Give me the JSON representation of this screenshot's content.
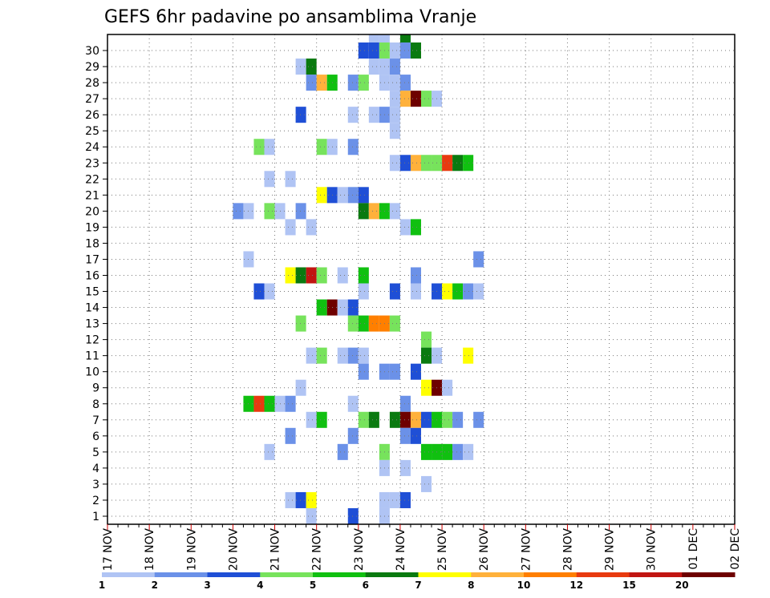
{
  "chart_data": {
    "type": "heatmap",
    "title": "GEFS 6hr padavine po ansamblima Vranje",
    "x_tick_labels": [
      "17 NOV",
      "18 NOV",
      "19 NOV",
      "20 NOV",
      "21 NOV",
      "22 NOV",
      "23 NOV",
      "24 NOV",
      "25 NOV",
      "26 NOV",
      "27 NOV",
      "28 NOV",
      "29 NOV",
      "30 NOV",
      "01 DEC",
      "02 DEC"
    ],
    "y_tick_labels": [
      "1",
      "2",
      "3",
      "4",
      "5",
      "6",
      "7",
      "8",
      "9",
      "10",
      "11",
      "12",
      "13",
      "14",
      "15",
      "16",
      "17",
      "18",
      "19",
      "20",
      "21",
      "22",
      "23",
      "24",
      "25",
      "26",
      "27",
      "28",
      "29",
      "30"
    ],
    "time_steps_per_day": 4,
    "grid": true,
    "legend": {
      "placement": "bottom",
      "thresholds": [
        "1",
        "2",
        "3",
        "4",
        "5",
        "6",
        "7",
        "8",
        "10",
        "12",
        "15",
        "20"
      ],
      "colors": [
        "#b0c4f4",
        "#6b91e8",
        "#1f4fd6",
        "#77e35c",
        "#10c010",
        "#0a7a10",
        "#ffff00",
        "#ffb13b",
        "#ff7f00",
        "#e83a0f",
        "#c11512",
        "#6e0000"
      ]
    },
    "cells": [
      [
        30,
        25,
        0
      ],
      [
        30,
        26,
        0
      ],
      [
        30,
        28,
        5
      ],
      [
        29,
        24,
        2
      ],
      [
        29,
        25,
        2
      ],
      [
        29,
        26,
        3
      ],
      [
        29,
        27,
        0
      ],
      [
        29,
        28,
        1
      ],
      [
        29,
        29,
        5
      ],
      [
        28,
        18,
        0
      ],
      [
        28,
        19,
        5
      ],
      [
        28,
        25,
        0
      ],
      [
        28,
        26,
        0
      ],
      [
        28,
        27,
        1
      ],
      [
        27,
        19,
        1
      ],
      [
        27,
        20,
        7
      ],
      [
        27,
        21,
        4
      ],
      [
        27,
        23,
        1
      ],
      [
        27,
        24,
        3
      ],
      [
        27,
        26,
        0
      ],
      [
        27,
        27,
        0
      ],
      [
        27,
        28,
        1
      ],
      [
        26,
        27,
        0
      ],
      [
        26,
        28,
        7
      ],
      [
        26,
        29,
        11
      ],
      [
        26,
        30,
        3
      ],
      [
        26,
        31,
        0
      ],
      [
        25,
        18,
        2
      ],
      [
        25,
        23,
        0
      ],
      [
        25,
        25,
        0
      ],
      [
        25,
        26,
        1
      ],
      [
        25,
        27,
        0
      ],
      [
        24,
        27,
        0
      ],
      [
        23,
        14,
        3
      ],
      [
        23,
        15,
        0
      ],
      [
        23,
        20,
        3
      ],
      [
        23,
        21,
        0
      ],
      [
        23,
        23,
        1
      ],
      [
        22,
        27,
        0
      ],
      [
        22,
        28,
        2
      ],
      [
        22,
        29,
        7
      ],
      [
        22,
        30,
        3
      ],
      [
        22,
        31,
        3
      ],
      [
        22,
        32,
        9
      ],
      [
        22,
        33,
        5
      ],
      [
        22,
        34,
        4
      ],
      [
        21,
        15,
        0
      ],
      [
        21,
        17,
        0
      ],
      [
        20,
        20,
        6
      ],
      [
        20,
        21,
        2
      ],
      [
        20,
        22,
        0
      ],
      [
        20,
        23,
        1
      ],
      [
        20,
        24,
        2
      ],
      [
        19,
        12,
        1
      ],
      [
        19,
        13,
        0
      ],
      [
        19,
        15,
        3
      ],
      [
        19,
        16,
        0
      ],
      [
        19,
        18,
        1
      ],
      [
        19,
        24,
        5
      ],
      [
        19,
        25,
        7
      ],
      [
        19,
        26,
        4
      ],
      [
        19,
        27,
        0
      ],
      [
        18,
        17,
        0
      ],
      [
        18,
        19,
        0
      ],
      [
        18,
        28,
        0
      ],
      [
        18,
        29,
        4
      ],
      [
        16,
        13,
        0
      ],
      [
        16,
        35,
        1
      ],
      [
        15,
        17,
        6
      ],
      [
        15,
        18,
        5
      ],
      [
        15,
        19,
        10
      ],
      [
        15,
        20,
        3
      ],
      [
        15,
        22,
        0
      ],
      [
        15,
        24,
        4
      ],
      [
        15,
        29,
        1
      ],
      [
        14,
        14,
        2
      ],
      [
        14,
        15,
        0
      ],
      [
        14,
        24,
        0
      ],
      [
        14,
        27,
        2
      ],
      [
        14,
        29,
        0
      ],
      [
        14,
        31,
        2
      ],
      [
        14,
        32,
        6
      ],
      [
        14,
        33,
        4
      ],
      [
        14,
        34,
        1
      ],
      [
        14,
        35,
        0
      ],
      [
        13,
        20,
        4
      ],
      [
        13,
        21,
        11
      ],
      [
        13,
        22,
        0
      ],
      [
        13,
        23,
        2
      ],
      [
        12,
        18,
        3
      ],
      [
        12,
        23,
        3
      ],
      [
        12,
        24,
        4
      ],
      [
        12,
        25,
        8
      ],
      [
        12,
        26,
        8
      ],
      [
        12,
        27,
        3
      ],
      [
        11,
        30,
        3
      ],
      [
        10,
        19,
        0
      ],
      [
        10,
        20,
        3
      ],
      [
        10,
        22,
        0
      ],
      [
        10,
        23,
        1
      ],
      [
        10,
        24,
        0
      ],
      [
        10,
        30,
        5
      ],
      [
        10,
        31,
        0
      ],
      [
        10,
        34,
        6
      ],
      [
        9,
        24,
        1
      ],
      [
        9,
        26,
        1
      ],
      [
        9,
        27,
        1
      ],
      [
        9,
        29,
        2
      ],
      [
        8,
        18,
        0
      ],
      [
        8,
        30,
        6
      ],
      [
        8,
        31,
        11
      ],
      [
        8,
        32,
        0
      ],
      [
        7,
        13,
        4
      ],
      [
        7,
        14,
        9
      ],
      [
        7,
        15,
        4
      ],
      [
        7,
        16,
        0
      ],
      [
        7,
        17,
        1
      ],
      [
        7,
        23,
        0
      ],
      [
        7,
        28,
        1
      ],
      [
        6,
        19,
        0
      ],
      [
        6,
        20,
        4
      ],
      [
        6,
        24,
        3
      ],
      [
        6,
        25,
        5
      ],
      [
        6,
        27,
        5
      ],
      [
        6,
        28,
        11
      ],
      [
        6,
        29,
        7
      ],
      [
        6,
        30,
        2
      ],
      [
        6,
        31,
        4
      ],
      [
        6,
        32,
        3
      ],
      [
        6,
        33,
        1
      ],
      [
        6,
        35,
        1
      ],
      [
        5,
        17,
        1
      ],
      [
        5,
        23,
        1
      ],
      [
        5,
        28,
        1
      ],
      [
        5,
        29,
        2
      ],
      [
        4,
        15,
        0
      ],
      [
        4,
        22,
        1
      ],
      [
        4,
        26,
        3
      ],
      [
        4,
        30,
        4
      ],
      [
        4,
        31,
        4
      ],
      [
        4,
        32,
        4
      ],
      [
        4,
        33,
        1
      ],
      [
        4,
        34,
        0
      ],
      [
        3,
        26,
        0
      ],
      [
        3,
        28,
        0
      ],
      [
        2,
        30,
        0
      ],
      [
        1,
        17,
        0
      ],
      [
        1,
        18,
        2
      ],
      [
        1,
        19,
        6
      ],
      [
        1,
        26,
        0
      ],
      [
        1,
        27,
        0
      ],
      [
        1,
        28,
        2
      ],
      [
        0,
        19,
        0
      ],
      [
        0,
        23,
        2
      ],
      [
        0,
        26,
        0
      ]
    ]
  }
}
